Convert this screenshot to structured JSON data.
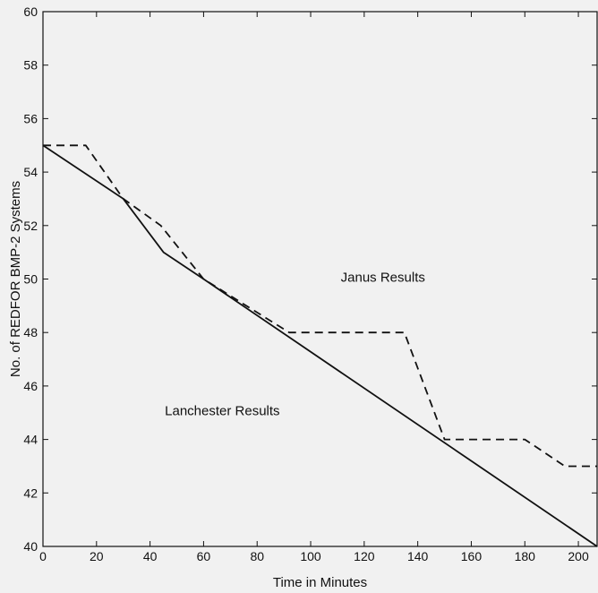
{
  "chart_data": {
    "type": "line",
    "xlabel": "Time in Minutes",
    "ylabel": "No. of REDFOR BMP-2 Systems",
    "xlim": [
      0,
      207
    ],
    "ylim": [
      40,
      60
    ],
    "xticks": [
      0,
      20,
      40,
      60,
      80,
      100,
      120,
      140,
      160,
      180,
      200
    ],
    "yticks": [
      40,
      42,
      44,
      46,
      48,
      50,
      52,
      54,
      56,
      58,
      60
    ],
    "grid": false,
    "series": [
      {
        "name": "Janus Results",
        "style": "dashed",
        "color": "#111111",
        "x": [
          0,
          16,
          30,
          44,
          60,
          92,
          135,
          150,
          180,
          195,
          207
        ],
        "y": [
          55,
          55,
          53,
          52,
          50,
          48,
          48,
          44,
          44,
          43,
          43
        ]
      },
      {
        "name": "Lanchester Results",
        "style": "solid",
        "color": "#111111",
        "x": [
          0,
          30,
          45,
          60,
          207
        ],
        "y": [
          55,
          53,
          51,
          50,
          40
        ]
      }
    ],
    "annotations": [
      {
        "text": "Janus Results",
        "x": 127,
        "y": 49.9
      },
      {
        "text": "Lanchester Results",
        "x": 67,
        "y": 44.9
      }
    ]
  }
}
